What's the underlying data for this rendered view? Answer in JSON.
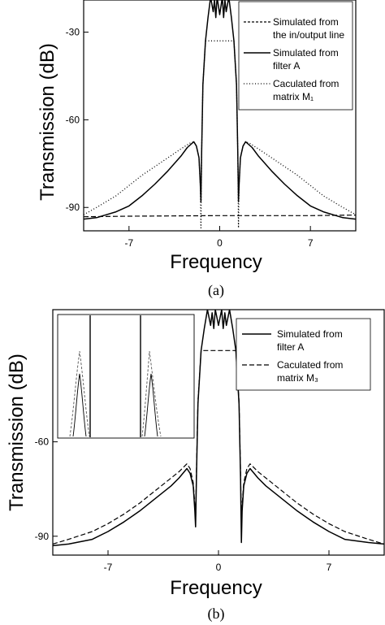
{
  "chart_data": [
    {
      "panel": "a",
      "type": "line",
      "caption": "(a)",
      "xlabel": "Frequency",
      "ylabel": "Transmission (dB)",
      "xlim": [
        -10.5,
        10.5
      ],
      "ylim": [
        -98,
        -19
      ],
      "xticks": [
        -7,
        0,
        7
      ],
      "xtick_labels": [
        "-7",
        "0",
        "7"
      ],
      "yticks": [
        -30,
        -60,
        -90
      ],
      "ytick_labels": [
        "-30",
        "-60",
        "-90"
      ],
      "grid": false,
      "legend_position": "top-right",
      "legend_lines": [
        [
          "Simulated from",
          "the in/output line"
        ],
        [
          "Simulated from",
          "filter A"
        ],
        [
          "Caculated from",
          "matrix M₁"
        ]
      ],
      "series": [
        {
          "name": "Simulated from the in/output line",
          "style": "dashed",
          "x": [
            -10.5,
            -7,
            0,
            7,
            10.5
          ],
          "y": [
            -93.2,
            -93,
            -92.8,
            -92.8,
            -92.6
          ]
        },
        {
          "name": "Simulated from filter A",
          "style": "solid",
          "x": [
            -10.5,
            -9.5,
            -8,
            -7,
            -6,
            -5,
            -4,
            -3,
            -2.5,
            -2,
            -1.8,
            -1.6,
            -1.5,
            -1.45,
            -1.4,
            -1.3,
            -1.1,
            -0.9,
            -0.7,
            -0.5,
            -0.4,
            -0.3,
            -0.2,
            0,
            0.2,
            0.3,
            0.4,
            0.5,
            0.7,
            0.9,
            1.1,
            1.3,
            1.4,
            1.45,
            1.5,
            1.6,
            1.8,
            2,
            2.5,
            3,
            4,
            5,
            6,
            7,
            8,
            9.5,
            10.5
          ],
          "y": [
            -94,
            -93.5,
            -91.5,
            -89.5,
            -86,
            -82,
            -77.5,
            -72.5,
            -69.5,
            -67.5,
            -69,
            -73,
            -82,
            -88,
            -72,
            -48,
            -33,
            -25,
            -18,
            -23,
            -19,
            -25,
            -18,
            -24,
            -18,
            -25,
            -19,
            -23,
            -18,
            -25,
            -33,
            -48,
            -72,
            -88,
            -82,
            -73,
            -69,
            -67.5,
            -69.5,
            -72.5,
            -77.5,
            -82,
            -86,
            -89.5,
            -91.5,
            -93.5,
            -94
          ]
        },
        {
          "name": "Caculated from matrix M₁",
          "style": "dotted",
          "x": [
            -10.5,
            -9.5,
            -8,
            -7,
            -6,
            -5,
            -4,
            -3,
            -2.3,
            -2,
            -1.8,
            -1.6,
            -1.5,
            -1.45,
            -1.4,
            -1.3,
            -1.1,
            0,
            1.1,
            1.3,
            1.4,
            1.45,
            1.5,
            1.6,
            1.8,
            2,
            2.3,
            3,
            4,
            5,
            6,
            7,
            8,
            9.5,
            10.5
          ],
          "y": [
            -92.5,
            -90,
            -86,
            -82.5,
            -79,
            -76,
            -73,
            -70,
            -68,
            -67.5,
            -69,
            -73,
            -82,
            -97,
            -72,
            -48,
            -33,
            -33,
            -33,
            -48,
            -72,
            -97,
            -82,
            -73,
            -69,
            -67.5,
            -68,
            -70,
            -73,
            -76,
            -79,
            -82.5,
            -86,
            -90,
            -92.5
          ]
        }
      ]
    },
    {
      "panel": "b",
      "type": "line",
      "caption": "(b)",
      "xlabel": "Frequency",
      "ylabel": "Transmission (dB)",
      "xlim": [
        -10.5,
        10.5
      ],
      "ylim": [
        -96,
        -18
      ],
      "xticks": [
        -7,
        0,
        7
      ],
      "xtick_labels": [
        "-7",
        "0",
        "7"
      ],
      "yticks": [
        -60,
        -90
      ],
      "ytick_labels": [
        "-60",
        "-90"
      ],
      "grid": false,
      "legend_position": "top-right",
      "legend_lines": [
        [
          "Simulated from",
          "filter A"
        ],
        [
          "Caculated from",
          "matrix M₃"
        ]
      ],
      "inset": "zoomed view of the passband edges (top-left)",
      "series": [
        {
          "name": "Simulated from filter A",
          "style": "solid",
          "x": [
            -10.5,
            -9.5,
            -8,
            -7,
            -6,
            -5,
            -4,
            -3,
            -2.5,
            -2,
            -1.8,
            -1.6,
            -1.5,
            -1.45,
            -1.4,
            -1.3,
            -1.1,
            -0.9,
            -0.7,
            -0.5,
            -0.4,
            -0.3,
            -0.2,
            0,
            0.2,
            0.3,
            0.4,
            0.5,
            0.7,
            0.9,
            1.1,
            1.3,
            1.4,
            1.45,
            1.5,
            1.6,
            1.8,
            2,
            2.5,
            3,
            4,
            5,
            6,
            7,
            8,
            9.5,
            10.5
          ],
          "y": [
            -93,
            -92.5,
            -91,
            -88.5,
            -85.5,
            -82,
            -78,
            -74,
            -71.5,
            -68.5,
            -70,
            -74,
            -82,
            -87,
            -72,
            -48,
            -31,
            -24,
            -18,
            -23,
            -19,
            -24,
            -18,
            -23,
            -18,
            -24,
            -19,
            -23,
            -18,
            -24,
            -31,
            -48,
            -72,
            -92,
            -82,
            -74,
            -70,
            -68.5,
            -71.5,
            -74,
            -78,
            -82,
            -85.5,
            -88.5,
            -91,
            -92,
            -92.5
          ]
        },
        {
          "name": "Caculated from matrix M₃",
          "style": "dashed",
          "x": [
            -10.5,
            -9.5,
            -8,
            -7,
            -6,
            -5,
            -4,
            -3,
            -2.5,
            -2,
            -1.8,
            -1.6,
            -1.5,
            -1.45,
            -1.4,
            -1.3,
            -1.1,
            0,
            1.1,
            1.3,
            1.4,
            1.45,
            1.5,
            1.6,
            1.8,
            2,
            2.5,
            3,
            4,
            5,
            6,
            7,
            8,
            9.5,
            10.5
          ],
          "y": [
            -92.5,
            -91,
            -88.5,
            -86,
            -83,
            -79.5,
            -75.5,
            -71.5,
            -69.5,
            -67,
            -68.5,
            -73,
            -80,
            -86,
            -70,
            -47,
            -31,
            -31,
            -31,
            -47,
            -70,
            -86,
            -80,
            -73,
            -68.5,
            -67,
            -69.5,
            -71.5,
            -75.5,
            -79.5,
            -83,
            -86,
            -88.5,
            -91,
            -92.5
          ]
        }
      ]
    }
  ]
}
